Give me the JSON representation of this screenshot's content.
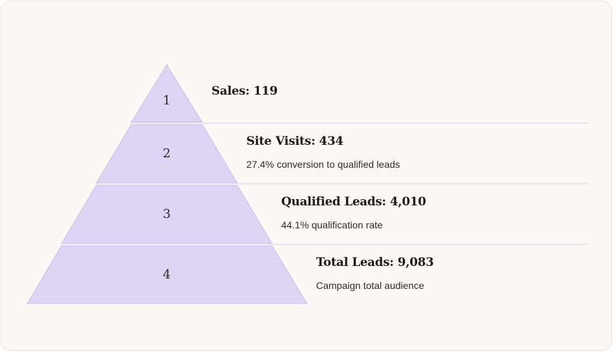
{
  "tiers": [
    {
      "number": "1",
      "title": "Sales: 119",
      "subtitle": ""
    },
    {
      "number": "2",
      "title": "Site Visits: 434",
      "subtitle": "27.4% conversion to qualified leads"
    },
    {
      "number": "3",
      "title": "Qualified Leads: 4,010",
      "subtitle": "44.1% qualification rate"
    },
    {
      "number": "4",
      "title": "Total Leads: 9,083",
      "subtitle": "Campaign total audience"
    }
  ],
  "colors": {
    "fill": "#ddd5f3",
    "stroke": "#c9bfe8",
    "divider": "#d6d0e4"
  }
}
